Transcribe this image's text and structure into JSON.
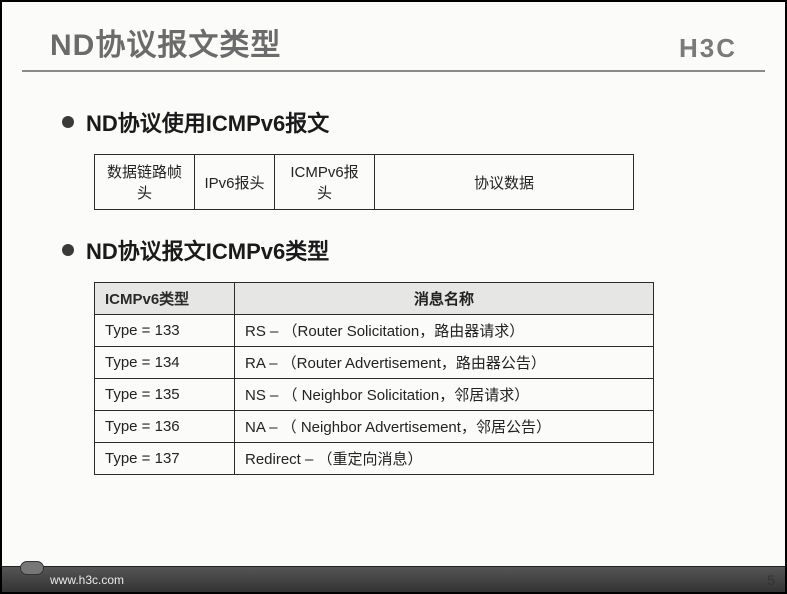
{
  "header": {
    "title": "ND协议报文类型",
    "logo": "H3C"
  },
  "bullets": {
    "b1": "ND协议使用ICMPv6报文",
    "b2": "ND协议报文ICMPv6类型"
  },
  "packet": {
    "c1": "数据链路帧头",
    "c2": "IPv6报头",
    "c3": "ICMPv6报头",
    "c4": "协议数据"
  },
  "table": {
    "head": {
      "h1": "ICMPv6类型",
      "h2": "消息名称"
    },
    "rows": [
      {
        "c1": "Type  =  133",
        "c2": "RS  –  （Router Solicitation，路由器请求）"
      },
      {
        "c1": "Type  =  134",
        "c2": "RA  –  （Router Advertisement，路由器公告）"
      },
      {
        "c1": "Type  =  135",
        "c2": "NS  –  （ Neighbor Solicitation，邻居请求）"
      },
      {
        "c1": "Type  =  136",
        "c2": "NA  –  （ Neighbor Advertisement，邻居公告）"
      },
      {
        "c1": "Type  =  137",
        "c2": "Redirect   –  （重定向消息）"
      }
    ]
  },
  "footer": {
    "url": "www.h3c.com",
    "page": "5"
  },
  "style": {
    "title_color": "#6b6b6b",
    "title_fontsize": 30,
    "logo_color": "#7a7a7a",
    "bullet_fontsize": 22,
    "table_header_bg": "#e6e6e4",
    "border_color": "#2a2a2a",
    "footer_bg_top": "#555555",
    "footer_bg_bottom": "#333333",
    "footer_text_color": "#eaeaea",
    "page_bg": "#fbfbf9"
  }
}
